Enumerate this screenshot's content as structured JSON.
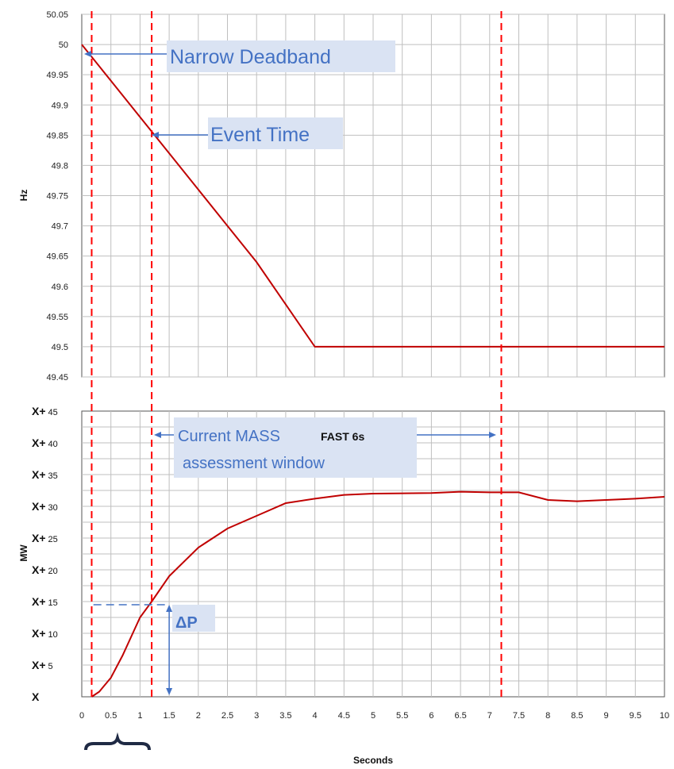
{
  "colors": {
    "series": "#C00000",
    "marker_line": "#FF0000",
    "annotation_text": "#4472C4",
    "annotation_bg": "#DAE3F3",
    "grid": "#BFBFBF"
  },
  "chart_data": [
    {
      "type": "line",
      "title": "",
      "xlabel": "",
      "ylabel": "Hz",
      "xlim": [
        0,
        10
      ],
      "ylim": [
        49.45,
        50.05
      ],
      "grid": true,
      "x_ticks": [
        "0",
        "0.5",
        "1",
        "1.5",
        "2",
        "2.5",
        "3",
        "3.5",
        "4",
        "4.5",
        "5",
        "5.5",
        "6",
        "6.5",
        "7",
        "7.5",
        "8",
        "8.5",
        "9",
        "9.5",
        "10"
      ],
      "y_ticks": [
        "50.05",
        "50",
        "49.95",
        "49.9",
        "49.85",
        "49.8",
        "49.75",
        "49.7",
        "49.65",
        "49.6",
        "49.55",
        "49.5",
        "49.45"
      ],
      "series": [
        {
          "x": [
            0,
            0.5,
            1,
            1.5,
            2,
            2.5,
            3,
            3.5,
            4,
            5,
            6,
            7,
            8,
            9,
            10
          ],
          "y": [
            50.0,
            49.94,
            49.88,
            49.82,
            49.76,
            49.7,
            49.64,
            49.57,
            49.5,
            49.5,
            49.5,
            49.5,
            49.5,
            49.5,
            49.5
          ]
        }
      ],
      "marker_lines_x": [
        0.17,
        1.2,
        7.2
      ],
      "annotations": [
        {
          "text": "Narrow Deadband",
          "at": {
            "x": 0,
            "y": 50.0
          }
        },
        {
          "text": "Event Time",
          "at": {
            "x": 1.2,
            "y": 49.85
          }
        }
      ]
    },
    {
      "type": "line",
      "title": "",
      "xlabel": "Seconds",
      "ylabel": "MW",
      "xlim": [
        0,
        10
      ],
      "ylim": [
        0,
        45
      ],
      "grid": true,
      "x_ticks": [
        "0",
        "0.5",
        "1",
        "1.5",
        "2",
        "2.5",
        "3",
        "3.5",
        "4",
        "4.5",
        "5",
        "5.5",
        "6",
        "6.5",
        "7",
        "7.5",
        "8",
        "8.5",
        "9",
        "9.5",
        "10"
      ],
      "y_ticks": [
        {
          "value": 45,
          "prefix": "X+",
          "num": "45"
        },
        {
          "value": 40,
          "prefix": "X+",
          "num": "40"
        },
        {
          "value": 35,
          "prefix": "X+",
          "num": "35"
        },
        {
          "value": 30,
          "prefix": "X+",
          "num": "30"
        },
        {
          "value": 25,
          "prefix": "X+",
          "num": "25"
        },
        {
          "value": 20,
          "prefix": "X+",
          "num": "20"
        },
        {
          "value": 15,
          "prefix": "X+",
          "num": "15"
        },
        {
          "value": 10,
          "prefix": "X+",
          "num": "10"
        },
        {
          "value": 5,
          "prefix": "X+",
          "num": "5"
        },
        {
          "value": 0,
          "prefix": "X",
          "num": ""
        }
      ],
      "series": [
        {
          "x": [
            0.17,
            0.3,
            0.5,
            0.7,
            0.9,
            1.0,
            1.2,
            1.5,
            2.0,
            2.5,
            3.0,
            3.5,
            4.0,
            4.5,
            5.0,
            6.0,
            6.5,
            7.0,
            7.5,
            8.0,
            8.5,
            9.0,
            9.5,
            10.0
          ],
          "y": [
            0,
            0.8,
            3.0,
            6.5,
            10.5,
            12.5,
            15.0,
            19.0,
            23.5,
            26.5,
            28.5,
            30.5,
            31.2,
            31.8,
            32.0,
            32.1,
            32.3,
            32.2,
            32.2,
            31.0,
            30.8,
            31.0,
            31.2,
            31.5
          ]
        }
      ],
      "marker_lines_x": [
        0.17,
        1.2,
        7.2
      ],
      "delta_p_level": 14.5,
      "annotations": [
        {
          "text": "Current MASS",
          "bold_text": "FAST 6s"
        },
        {
          "text": "assessment window"
        },
        {
          "text": "ΔP"
        }
      ]
    }
  ]
}
